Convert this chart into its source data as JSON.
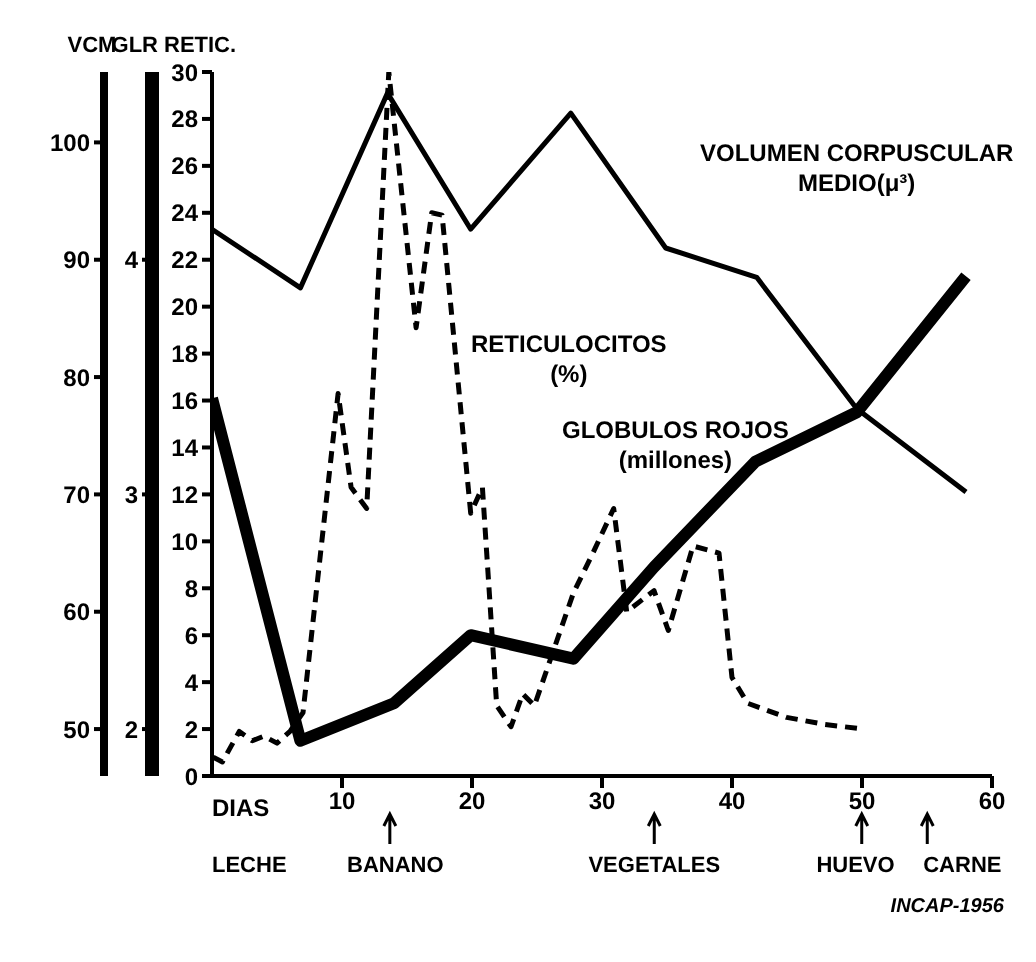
{
  "chart_data": {
    "type": "line",
    "ylabel": "RETIC.",
    "y2label": "GLR",
    "y3label": "VCM",
    "xlabel": "DIAS",
    "xlim": [
      0,
      60
    ],
    "xticks": [
      10,
      20,
      30,
      40,
      50,
      60
    ],
    "ylim": [
      0,
      30
    ],
    "yticks": [
      0,
      2,
      4,
      6,
      8,
      10,
      12,
      14,
      16,
      18,
      20,
      22,
      24,
      26,
      28,
      30
    ],
    "y2lim": [
      1.8,
      4.8
    ],
    "y2ticks": [
      2,
      3,
      4
    ],
    "y3lim": [
      46,
      106
    ],
    "y3ticks": [
      50,
      60,
      70,
      80,
      90,
      100
    ],
    "marker": "none",
    "series": [
      {
        "name": "VOLUMEN CORPUSCULAR MEDIO(μ³)",
        "color": "#000000",
        "axis": "y3",
        "line_style": "solid",
        "x": [
          0,
          6.8,
          13.5,
          19.9,
          27.6,
          34.9,
          41.9,
          49.6,
          58
        ],
        "values": [
          92.6,
          87.6,
          104.2,
          92.6,
          102.5,
          91,
          88.5,
          77.3,
          70.2
        ]
      },
      {
        "name": "GLOBULOS ROJOS (millones)",
        "color": "#000000",
        "axis": "y2",
        "line_style": "solid",
        "x": [
          0,
          6.8,
          14,
          19.9,
          27.8,
          34,
          41.8,
          49.6,
          58
        ],
        "values": [
          3.41,
          1.95,
          2.11,
          2.4,
          2.3,
          2.69,
          3.14,
          3.35,
          3.93
        ]
      },
      {
        "name": "RETICULOCITOS (%)",
        "color": "#000000",
        "axis": "y",
        "line_style": "dashed",
        "x": [
          0.1,
          0.8,
          2.1,
          3.1,
          4,
          5,
          6,
          7,
          9.7,
          10.7,
          11.9,
          13.6,
          15.7,
          16.9,
          17.7,
          19.9,
          20.8,
          21.9,
          23,
          23.9,
          24.8,
          27.8,
          29.3,
          30.9,
          31.9,
          34,
          35.1,
          37,
          39,
          40,
          41.2,
          44.2,
          47.1,
          50.1
        ],
        "values": [
          0.8,
          0.6,
          1.9,
          1.5,
          1.7,
          1.4,
          1.9,
          2.7,
          16.3,
          12.3,
          11.4,
          30,
          19.1,
          24,
          23.9,
          11.2,
          12.3,
          3,
          2.1,
          3.5,
          3,
          7.8,
          9.5,
          11.4,
          7,
          7.9,
          6.2,
          9.8,
          9.5,
          4.2,
          3.1,
          2.5,
          2.2,
          2
        ]
      }
    ],
    "annotations": [
      "LECHE",
      "BANANO",
      "VEGETALES",
      "HUEVO",
      "CARNE",
      "INCAP-1956"
    ]
  }
}
